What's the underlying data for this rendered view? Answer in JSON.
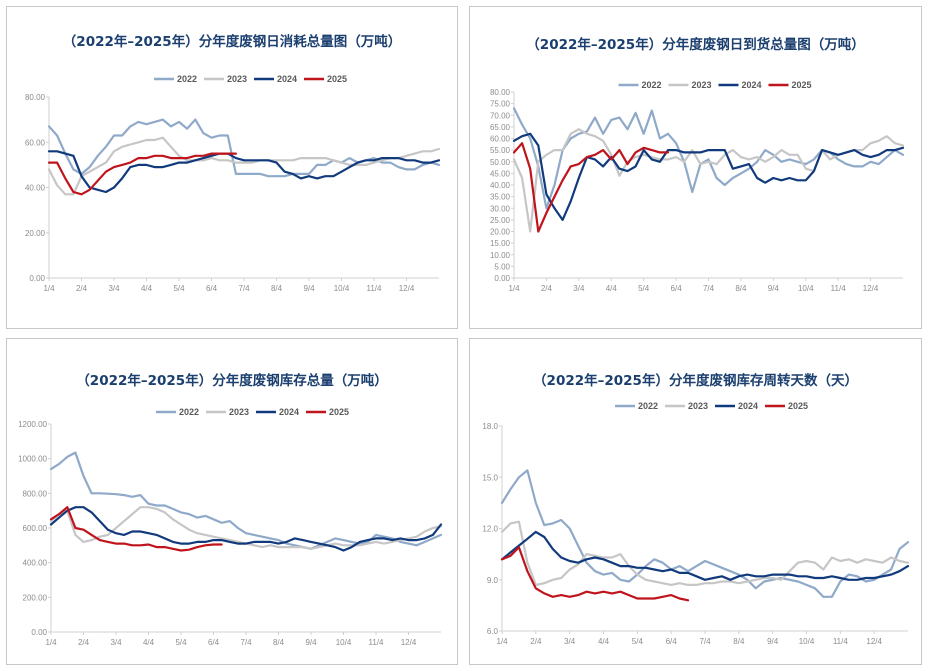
{
  "colors": {
    "2022": "#8fa9c9",
    "2023": "#c6c6c6",
    "2024": "#113a7d",
    "2025": "#c0141d",
    "title": "#1b3f6f",
    "axis": "#d0d0d0",
    "tick_text": "#8c8c8c"
  },
  "chart_data": [
    {
      "type": "line",
      "title": "（2022年–2025年）分年度废钢日消耗总量图（万吨）",
      "x_tick_labels": [
        "1/4",
        "2/4",
        "3/4",
        "4/4",
        "5/4",
        "6/4",
        "7/4",
        "8/4",
        "9/4",
        "10/4",
        "11/4",
        "12/4"
      ],
      "y_tick_labels": [
        "0.00",
        "20.00",
        "40.00",
        "60.00",
        "80.00"
      ],
      "ylim": [
        0,
        80
      ],
      "grid": false,
      "legend_position": "top-center",
      "x": [
        1,
        1.5,
        2,
        2.5,
        3,
        3.5,
        4,
        4.5,
        5,
        5.5,
        6,
        6.5,
        7,
        7.5,
        8,
        8.5,
        9,
        9.5,
        10,
        10.5,
        11,
        11.5,
        12,
        12.5,
        13,
        13.5,
        14,
        14.5,
        15,
        15.5,
        16,
        16.5,
        17,
        17.5,
        18,
        18.5,
        19,
        19.5,
        20,
        20.5,
        21,
        21.5,
        22,
        22.5,
        23,
        23.5,
        24,
        24.5,
        25
      ],
      "series": [
        {
          "name": "2022",
          "values": [
            67,
            63,
            55,
            48,
            46,
            49,
            54,
            58,
            63,
            63,
            67,
            69,
            68,
            69,
            70,
            67,
            69,
            66,
            70,
            64,
            62,
            63,
            63,
            46,
            46,
            46,
            46,
            45,
            45,
            45,
            46,
            46,
            46,
            50,
            50,
            52,
            51,
            53,
            51,
            52,
            53,
            51,
            51,
            49,
            48,
            48,
            50,
            51,
            50
          ]
        },
        {
          "name": "2023",
          "values": [
            48,
            41,
            37,
            37,
            45,
            47,
            49,
            51,
            56,
            58,
            59,
            60,
            61,
            61,
            62,
            58,
            54,
            52,
            52,
            52,
            53,
            52,
            52,
            51,
            51,
            51,
            52,
            52,
            52,
            52,
            52,
            53,
            53,
            53,
            53,
            52,
            51,
            50,
            50,
            50,
            51,
            52,
            53,
            53,
            54,
            55,
            56,
            56,
            57
          ]
        },
        {
          "name": "2024",
          "values": [
            56,
            56,
            55,
            54,
            45,
            40,
            39,
            38,
            40,
            44,
            49,
            50,
            50,
            49,
            49,
            50,
            51,
            51,
            52,
            53,
            54,
            55,
            55,
            53,
            52,
            52,
            52,
            52,
            51,
            47,
            46,
            44,
            45,
            44,
            45,
            45,
            47,
            49,
            51,
            52,
            52,
            53,
            53,
            53,
            52,
            52,
            51,
            51,
            52
          ]
        },
        {
          "name": "2025",
          "values": [
            51,
            51,
            44,
            38,
            37,
            39,
            43,
            47,
            49,
            50,
            51,
            53,
            53,
            54,
            54,
            53,
            53,
            53,
            54,
            54,
            55,
            55,
            55,
            55,
            null,
            null,
            null,
            null,
            null,
            null,
            null,
            null,
            null,
            null,
            null,
            null,
            null,
            null,
            null,
            null,
            null,
            null,
            null,
            null,
            null,
            null,
            null,
            null,
            null
          ]
        }
      ]
    },
    {
      "type": "line",
      "title": "（2022年–2025年）分年度废钢日到货总量图（万吨）",
      "x_tick_labels": [
        "1/4",
        "2/4",
        "3/4",
        "4/4",
        "5/4",
        "6/4",
        "7/4",
        "8/4",
        "9/4",
        "10/4",
        "11/4",
        "12/4"
      ],
      "y_tick_labels": [
        "0.00",
        "5.00",
        "10.00",
        "15.00",
        "20.00",
        "25.00",
        "30.00",
        "35.00",
        "40.00",
        "45.00",
        "50.00",
        "55.00",
        "60.00",
        "65.00",
        "70.00",
        "75.00",
        "80.00"
      ],
      "ylim": [
        0,
        80
      ],
      "grid": false,
      "legend_position": "top-center",
      "x": [
        1,
        1.5,
        2,
        2.5,
        3,
        3.5,
        4,
        4.5,
        5,
        5.5,
        6,
        6.5,
        7,
        7.5,
        8,
        8.5,
        9,
        9.5,
        10,
        10.5,
        11,
        11.5,
        12,
        12.5,
        13,
        13.5,
        14,
        14.5,
        15,
        15.5,
        16,
        16.5,
        17,
        17.5,
        18,
        18.5,
        19,
        19.5,
        20,
        20.5,
        21,
        21.5,
        22,
        22.5,
        23,
        23.5,
        24,
        24.5,
        25
      ],
      "series": [
        {
          "name": "2022",
          "values": [
            73,
            66,
            60,
            48,
            30,
            40,
            55,
            60,
            62,
            63,
            69,
            62,
            68,
            69,
            64,
            71,
            62,
            72,
            60,
            62,
            58,
            50,
            37,
            49,
            51,
            43,
            40,
            43,
            45,
            47,
            50,
            55,
            53,
            50,
            51,
            50,
            49,
            51,
            55,
            54,
            51,
            49,
            48,
            48,
            50,
            49,
            52,
            55,
            53
          ]
        },
        {
          "name": "2023",
          "values": [
            51,
            43,
            20,
            50,
            53,
            55,
            55,
            62,
            64,
            62,
            61,
            59,
            53,
            44,
            50,
            52,
            53,
            52,
            51,
            51,
            52,
            50,
            55,
            49,
            50,
            49,
            53,
            55,
            52,
            51,
            52,
            50,
            52,
            55,
            53,
            53,
            47,
            46,
            55,
            51,
            53,
            54,
            55,
            55,
            58,
            59,
            61,
            58,
            57
          ]
        },
        {
          "name": "2024",
          "values": [
            59,
            61,
            62,
            57,
            36,
            30,
            25,
            33,
            43,
            52,
            51,
            48,
            52,
            47,
            46,
            48,
            55,
            51,
            50,
            55,
            55,
            54,
            54,
            54,
            55,
            55,
            55,
            47,
            48,
            49,
            43,
            41,
            43,
            42,
            43,
            42,
            42,
            46,
            55,
            54,
            53,
            54,
            55,
            53,
            52,
            53,
            55,
            55,
            56
          ]
        },
        {
          "name": "2025",
          "values": [
            54,
            58,
            47,
            20,
            28,
            35,
            42,
            48,
            49,
            52,
            53,
            55,
            51,
            55,
            49,
            54,
            56,
            55,
            54,
            54,
            null,
            null,
            null,
            null,
            null,
            null,
            null,
            null,
            null,
            null,
            null,
            null,
            null,
            null,
            null,
            null,
            null,
            null,
            null,
            null,
            null,
            null,
            null,
            null,
            null,
            null,
            null,
            null,
            null
          ]
        }
      ]
    },
    {
      "type": "line",
      "title": "（2022年–2025年）分年度废钢库存总量（万吨）",
      "x_tick_labels": [
        "1/4",
        "2/4",
        "3/4",
        "4/4",
        "5/4",
        "6/4",
        "7/4",
        "8/4",
        "9/4",
        "10/4",
        "11/4",
        "12/4"
      ],
      "y_tick_labels": [
        "0.00",
        "200.00",
        "400.00",
        "600.00",
        "800.00",
        "1000.00",
        "1200.00"
      ],
      "ylim": [
        0,
        1200
      ],
      "grid": false,
      "legend_position": "top-center",
      "x": [
        1,
        1.5,
        2,
        2.5,
        3,
        3.5,
        4,
        4.5,
        5,
        5.5,
        6,
        6.5,
        7,
        7.5,
        8,
        8.5,
        9,
        9.5,
        10,
        10.5,
        11,
        11.5,
        12,
        12.5,
        13,
        13.5,
        14,
        14.5,
        15,
        15.5,
        16,
        16.5,
        17,
        17.5,
        18,
        18.5,
        19,
        19.5,
        20,
        20.5,
        21,
        21.5,
        22,
        22.5,
        23,
        23.5,
        24,
        24.5,
        25
      ],
      "series": [
        {
          "name": "2022",
          "values": [
            940,
            970,
            1010,
            1035,
            900,
            800,
            800,
            798,
            795,
            790,
            780,
            790,
            740,
            730,
            730,
            710,
            690,
            680,
            660,
            670,
            650,
            630,
            640,
            600,
            570,
            560,
            550,
            540,
            530,
            510,
            500,
            490,
            480,
            500,
            520,
            540,
            530,
            520,
            510,
            520,
            560,
            550,
            540,
            520,
            510,
            500,
            520,
            540,
            560
          ]
        },
        {
          "name": "2023",
          "values": [
            640,
            680,
            700,
            560,
            520,
            530,
            550,
            560,
            600,
            640,
            680,
            720,
            720,
            710,
            690,
            650,
            620,
            590,
            570,
            560,
            550,
            540,
            530,
            520,
            510,
            500,
            490,
            500,
            490,
            490,
            490,
            490,
            480,
            490,
            500,
            510,
            500,
            500,
            500,
            510,
            520,
            510,
            520,
            530,
            540,
            550,
            580,
            600,
            610
          ]
        },
        {
          "name": "2024",
          "values": [
            620,
            660,
            700,
            720,
            720,
            690,
            640,
            590,
            570,
            560,
            580,
            580,
            570,
            560,
            540,
            520,
            510,
            510,
            520,
            520,
            530,
            530,
            520,
            510,
            510,
            520,
            520,
            520,
            510,
            520,
            540,
            530,
            520,
            510,
            500,
            490,
            470,
            490,
            520,
            530,
            540,
            540,
            530,
            540,
            530,
            530,
            540,
            560,
            620
          ]
        },
        {
          "name": "2025",
          "values": [
            650,
            680,
            720,
            600,
            590,
            560,
            530,
            520,
            510,
            510,
            500,
            500,
            505,
            490,
            490,
            480,
            470,
            475,
            490,
            500,
            505,
            505,
            null,
            null,
            null,
            null,
            null,
            null,
            null,
            null,
            null,
            null,
            null,
            null,
            null,
            null,
            null,
            null,
            null,
            null,
            null,
            null,
            null,
            null,
            null,
            null,
            null,
            null,
            null
          ]
        }
      ]
    },
    {
      "type": "line",
      "title": "（2022年–2025年）分年度废钢库存周转天数（天）",
      "x_tick_labels": [
        "1/4",
        "2/4",
        "3/4",
        "4/4",
        "5/4",
        "6/4",
        "7/4",
        "8/4",
        "9/4",
        "10/4",
        "11/4",
        "12/4"
      ],
      "y_tick_labels": [
        "6.0",
        "9.0",
        "12.0",
        "15.0",
        "18.0"
      ],
      "ylim": [
        6,
        18
      ],
      "grid": false,
      "legend_position": "top-center",
      "x": [
        1,
        1.5,
        2,
        2.5,
        3,
        3.5,
        4,
        4.5,
        5,
        5.5,
        6,
        6.5,
        7,
        7.5,
        8,
        8.5,
        9,
        9.5,
        10,
        10.5,
        11,
        11.5,
        12,
        12.5,
        13,
        13.5,
        14,
        14.5,
        15,
        15.5,
        16,
        16.5,
        17,
        17.5,
        18,
        18.5,
        19,
        19.5,
        20,
        20.5,
        21,
        21.5,
        22,
        22.5,
        23,
        23.5,
        24,
        24.5,
        25
      ],
      "series": [
        {
          "name": "2022",
          "values": [
            13.5,
            14.3,
            15.0,
            15.4,
            13.5,
            12.2,
            12.3,
            12.5,
            12.0,
            11.0,
            10.0,
            9.5,
            9.3,
            9.4,
            9.0,
            8.9,
            9.3,
            9.8,
            10.2,
            10.0,
            9.6,
            9.8,
            9.5,
            9.8,
            10.1,
            9.9,
            9.7,
            9.5,
            9.3,
            9.0,
            8.5,
            8.9,
            9.0,
            9.1,
            9.0,
            8.9,
            8.7,
            8.5,
            8.0,
            8.0,
            8.9,
            9.3,
            9.2,
            8.9,
            9.0,
            9.3,
            9.6,
            10.8,
            11.2
          ]
        },
        {
          "name": "2023",
          "values": [
            11.8,
            12.3,
            12.4,
            10.0,
            8.7,
            8.8,
            9.0,
            9.1,
            9.6,
            9.9,
            10.5,
            10.4,
            10.3,
            10.3,
            10.5,
            9.8,
            9.3,
            9.0,
            8.9,
            8.8,
            8.7,
            8.8,
            8.7,
            8.7,
            8.8,
            8.8,
            8.9,
            8.9,
            8.8,
            8.9,
            9.0,
            9.1,
            9.1,
            9.0,
            9.5,
            10.0,
            10.1,
            10.0,
            9.6,
            10.3,
            10.1,
            10.2,
            10.0,
            10.2,
            10.1,
            10.0,
            10.3,
            10.1,
            10.0
          ]
        },
        {
          "name": "2024",
          "values": [
            10.2,
            10.6,
            11.0,
            11.4,
            11.8,
            11.5,
            10.8,
            10.3,
            10.1,
            10.0,
            10.2,
            10.3,
            10.2,
            10.0,
            9.8,
            9.8,
            9.7,
            9.7,
            9.6,
            9.5,
            9.6,
            9.4,
            9.4,
            9.2,
            9.0,
            9.1,
            9.2,
            9.0,
            9.2,
            9.3,
            9.2,
            9.2,
            9.3,
            9.3,
            9.3,
            9.2,
            9.2,
            9.1,
            9.1,
            9.2,
            9.1,
            9.0,
            9.0,
            9.1,
            9.1,
            9.2,
            9.3,
            9.5,
            9.8
          ]
        },
        {
          "name": "2025",
          "values": [
            10.2,
            10.4,
            10.9,
            9.5,
            8.5,
            8.2,
            8.0,
            8.1,
            8.0,
            8.1,
            8.3,
            8.2,
            8.3,
            8.2,
            8.3,
            8.1,
            7.9,
            7.9,
            7.9,
            8.0,
            8.1,
            7.9,
            7.8,
            null,
            null,
            null,
            null,
            null,
            null,
            null,
            null,
            null,
            null,
            null,
            null,
            null,
            null,
            null,
            null,
            null,
            null,
            null,
            null,
            null,
            null,
            null,
            null,
            null,
            null
          ]
        }
      ]
    }
  ]
}
